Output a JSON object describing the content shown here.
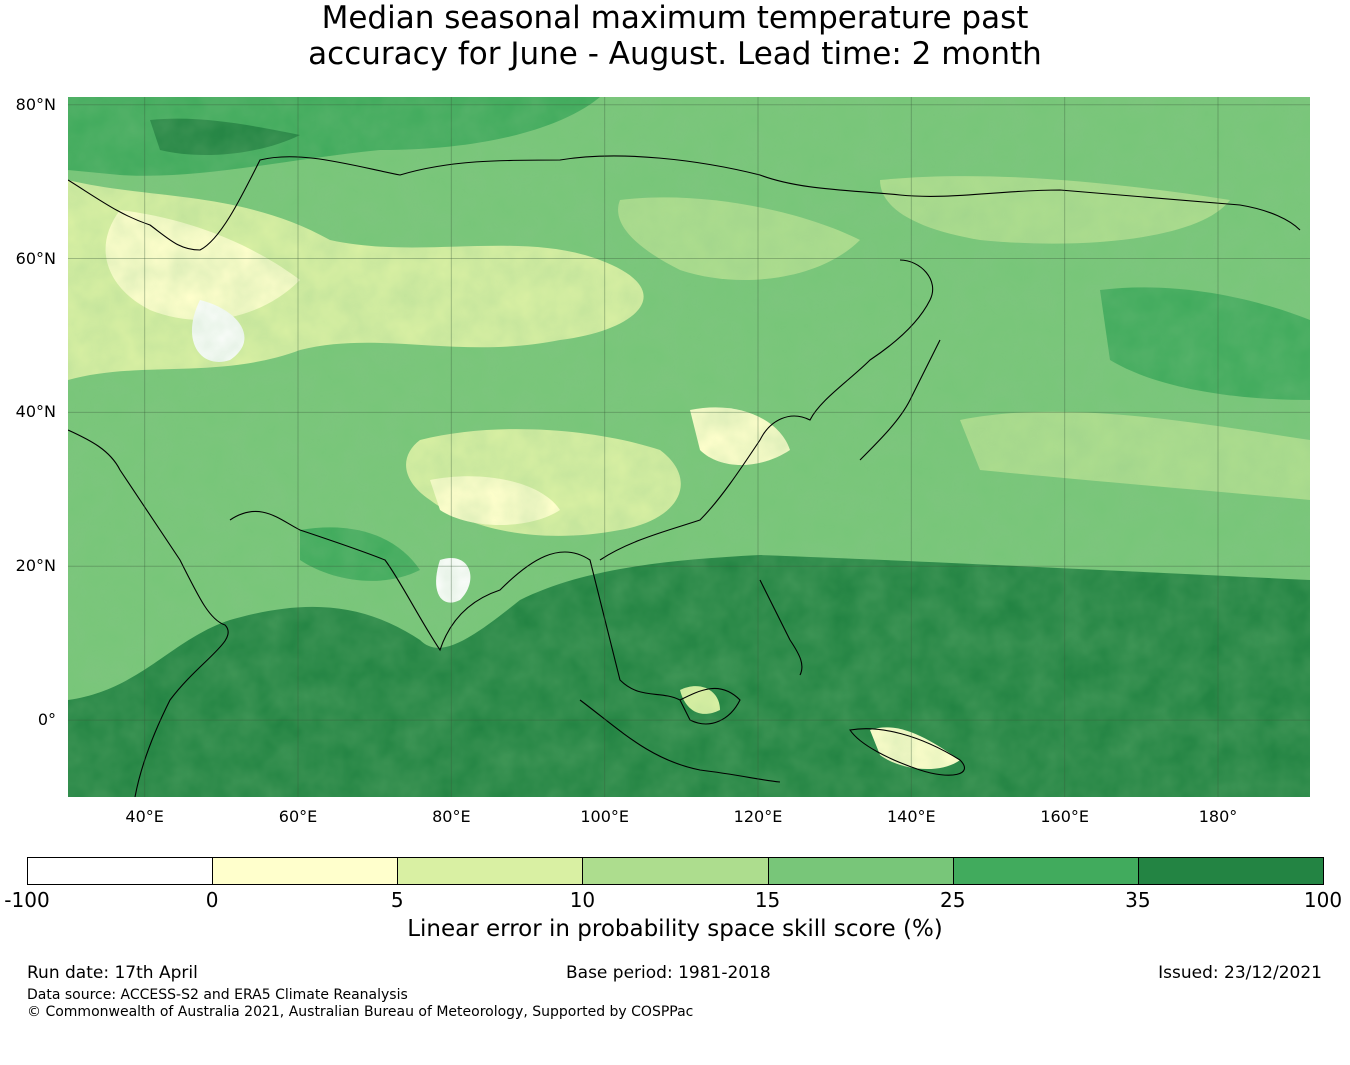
{
  "title": {
    "line1": "Median seasonal maximum temperature past",
    "line2": "accuracy for June - August. Lead time: 2 month"
  },
  "map": {
    "lat_labels": [
      "80°N",
      "60°N",
      "40°N",
      "20°N",
      "0°"
    ],
    "lon_labels": [
      "40°E",
      "60°E",
      "80°E",
      "100°E",
      "120°E",
      "140°E",
      "160°E",
      "180°"
    ],
    "lon_range": [
      30,
      192
    ],
    "lat_range": [
      -10,
      81
    ]
  },
  "colorbar": {
    "ticks": [
      "-100",
      "0",
      "5",
      "10",
      "15",
      "25",
      "35",
      "100"
    ],
    "colors": [
      "#ffffff",
      "#ffffcc",
      "#d9f0a3",
      "#addd8e",
      "#78c679",
      "#41ab5d",
      "#238443"
    ],
    "label": "Linear error in probability space skill score (%)"
  },
  "footer": {
    "run_date": "Run date: 17th April",
    "base_period": "Base period: 1981-2018",
    "issued": "Issued: 23/12/2021",
    "data_source": "Data source: ACCESS-S2 and ERA5 Climate Reanalysis",
    "copyright": "© Commonwealth of Australia 2021, Australian Bureau of Meteorology, Supported by COSPPac"
  }
}
